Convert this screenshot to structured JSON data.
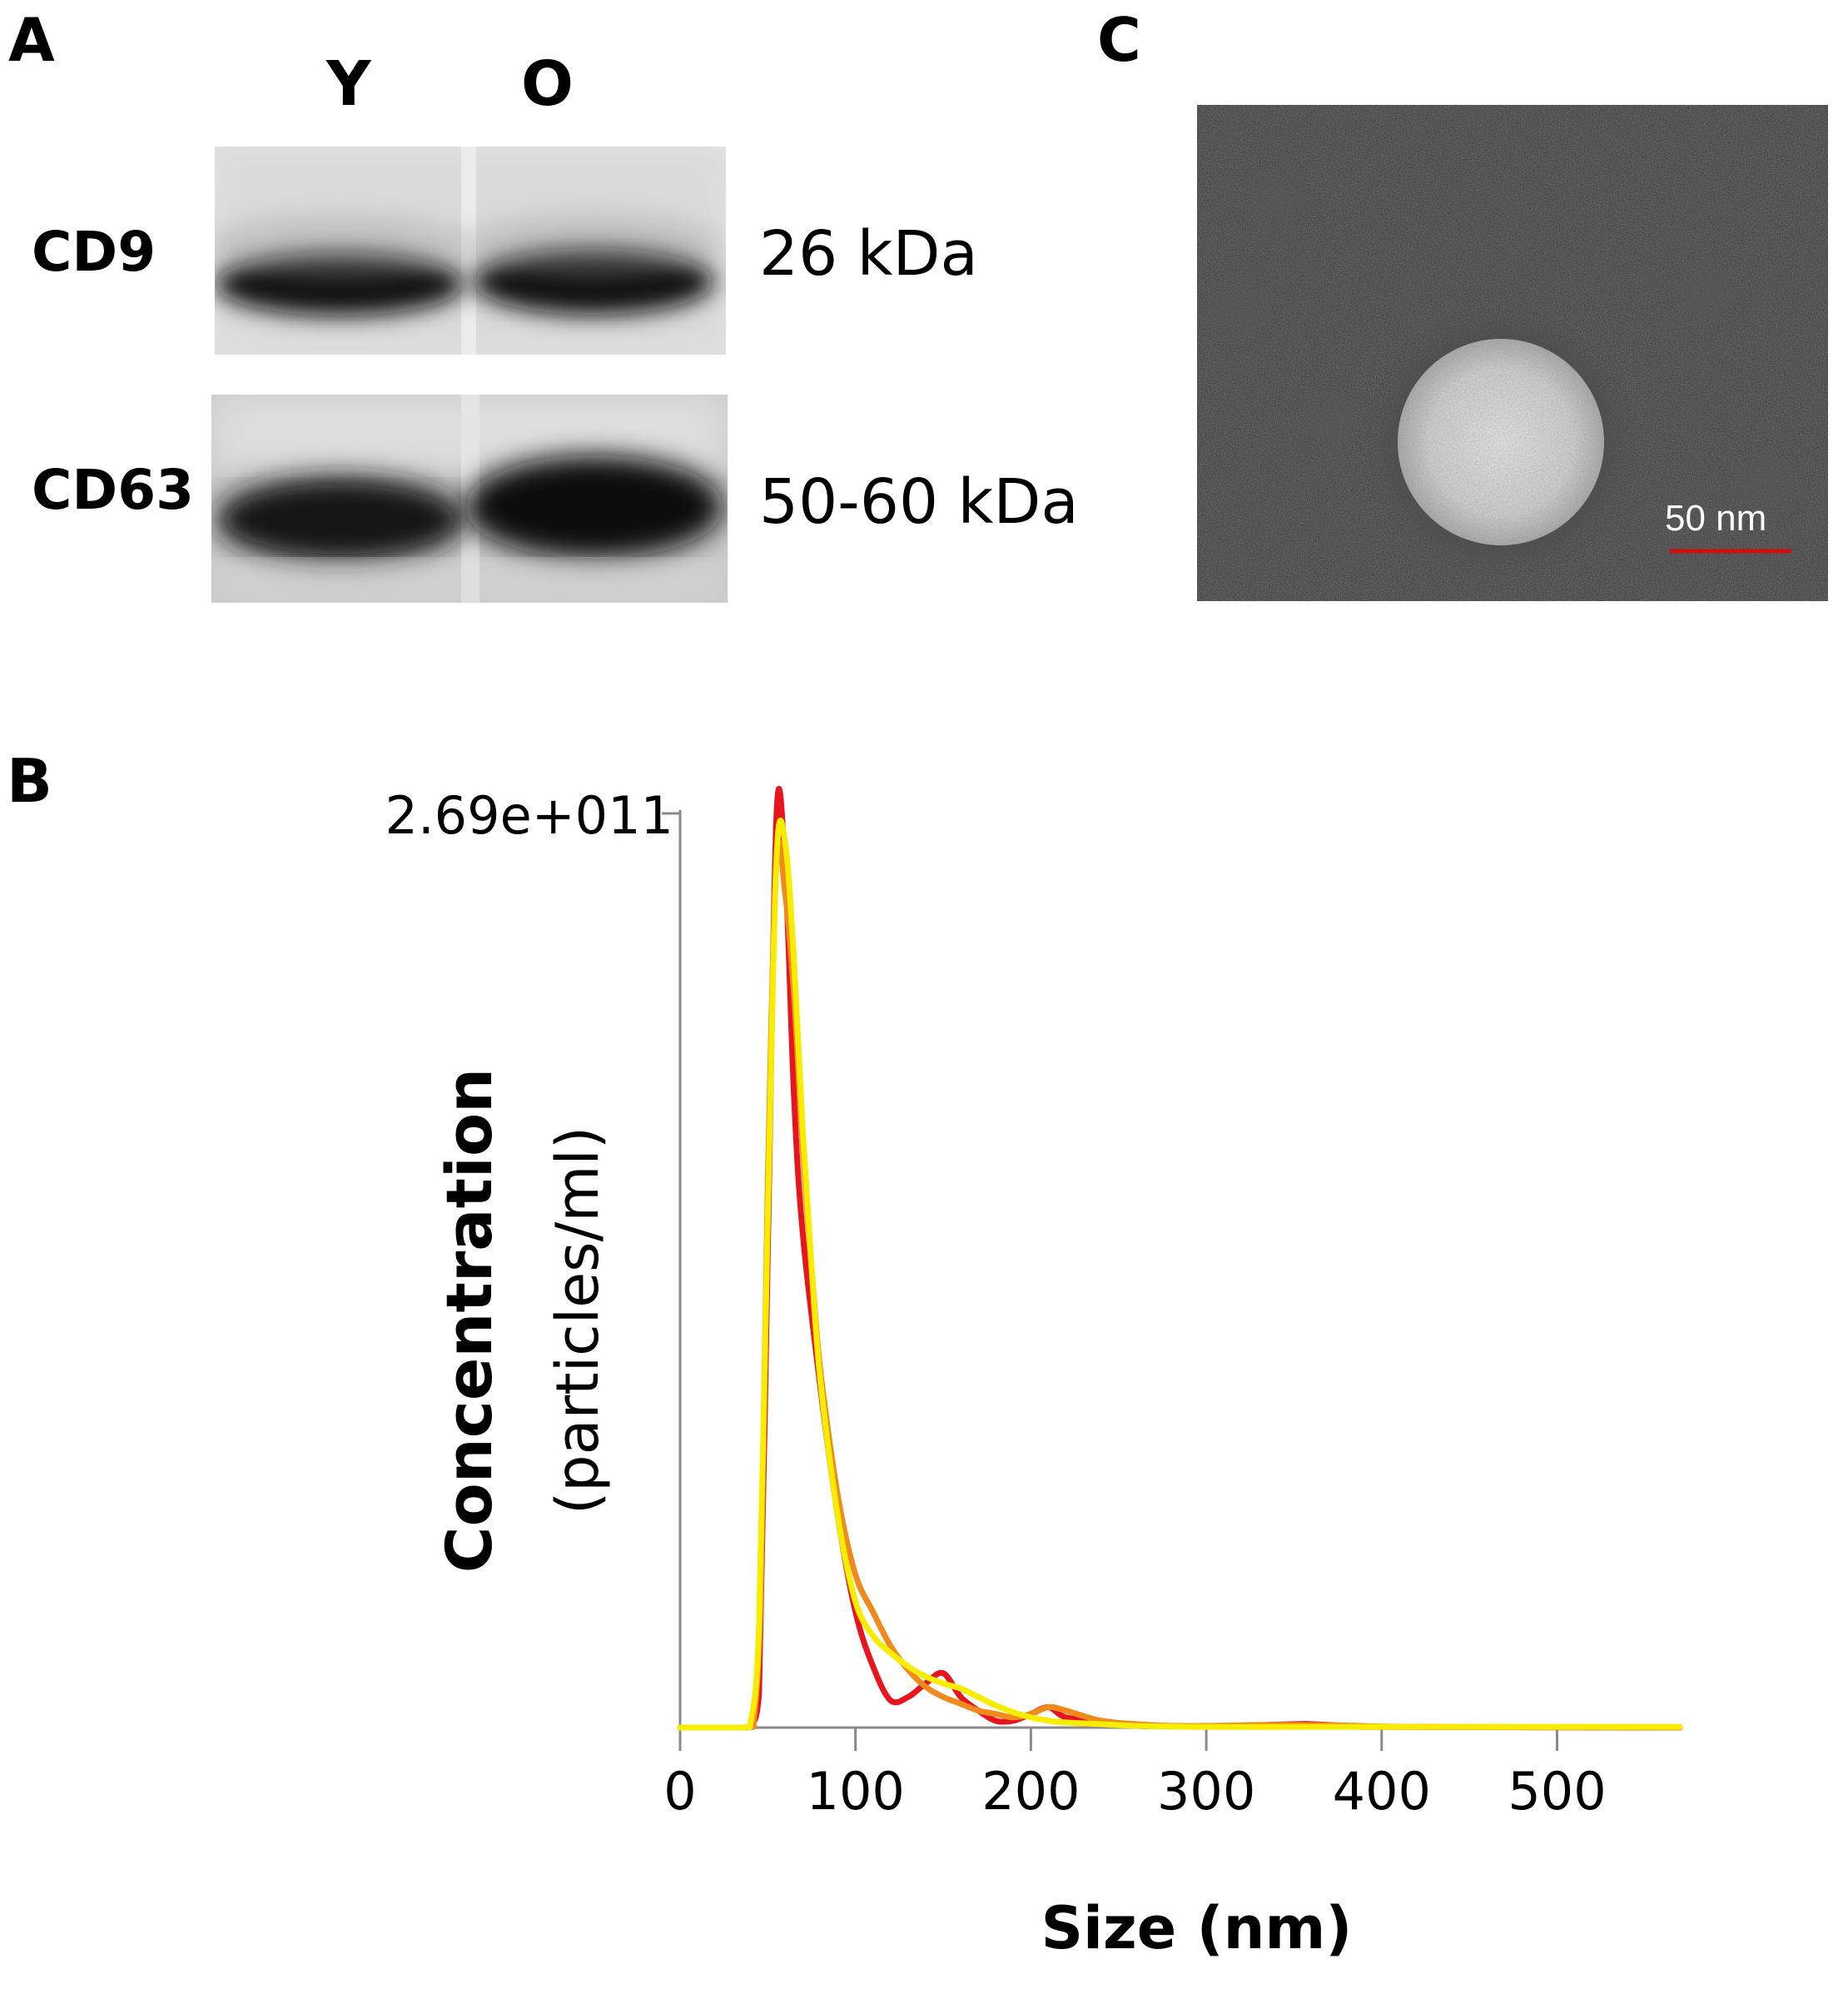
{
  "panels": {
    "a_letter": "A",
    "b_letter": "B",
    "c_letter": "C"
  },
  "western_blot": {
    "lanes": [
      "Y",
      "O"
    ],
    "rows": [
      {
        "label": "CD9",
        "mw": "26 kDa"
      },
      {
        "label": "CD63",
        "mw": "50-60 kDa"
      }
    ]
  },
  "tem": {
    "scale_bar_label": "50 nm",
    "scale_bar_color": "#d01010",
    "background_color": "#2e2e2e"
  },
  "chart_data": {
    "type": "line",
    "xlabel": "Size (nm)",
    "ylabel": "Concentration",
    "ylabel_units": "(particles/ml)",
    "y_max_label": "2.69e+011",
    "xlim": [
      0,
      570
    ],
    "ylim": [
      0,
      269000000000.0
    ],
    "x_ticks": [
      0,
      100,
      200,
      300,
      400,
      500
    ],
    "x_tick_labels": [
      "0",
      "100",
      "200",
      "300",
      "400",
      "500"
    ],
    "grid": false,
    "series": [
      {
        "color": "#e8141e",
        "x": [
          0,
          35,
          40,
          45,
          50,
          55,
          60,
          65,
          70,
          80,
          90,
          100,
          110,
          120,
          130,
          140,
          150,
          160,
          170,
          180,
          190,
          200,
          210,
          220,
          240,
          260,
          280,
          300,
          350,
          360,
          380,
          400,
          570
        ],
        "y": [
          0,
          0,
          500000000.0,
          10000000000.0,
          140000000000.0,
          269000000000.0,
          252000000000.0,
          185000000000.0,
          145000000000.0,
          100000000000.0,
          62000000000.0,
          34000000000.0,
          18000000000.0,
          8000000000.0,
          9000000000.0,
          13000000000.0,
          16000000000.0,
          9000000000.0,
          5000000000.0,
          2000000000.0,
          2000000000.0,
          4000000000.0,
          6000000000.0,
          3000000000.0,
          2000000000.0,
          500000000.0,
          500000000.0,
          300000000.0,
          1000000000.0,
          1000000000.0,
          500000000.0,
          200000000.0,
          0
        ]
      },
      {
        "color": "#f08a1c",
        "x": [
          0,
          38,
          42,
          46,
          50,
          55,
          60,
          65,
          70,
          75,
          80,
          90,
          100,
          110,
          120,
          130,
          140,
          150,
          160,
          170,
          180,
          190,
          200,
          210,
          220,
          240,
          260,
          280,
          300,
          340,
          380,
          420,
          570
        ],
        "y": [
          0,
          0,
          2000000000.0,
          40000000000.0,
          160000000000.0,
          255000000000.0,
          245000000000.0,
          215000000000.0,
          170000000000.0,
          135000000000.0,
          105000000000.0,
          68000000000.0,
          45000000000.0,
          34000000000.0,
          24000000000.0,
          17000000000.0,
          12000000000.0,
          9000000000.0,
          7000000000.0,
          5000000000.0,
          4000000000.0,
          3000000000.0,
          4000000000.0,
          6000000000.0,
          5000000000.0,
          2000000000.0,
          1000000000.0,
          500000000.0,
          500000000.0,
          800000000.0,
          600000000.0,
          200000000.0,
          0
        ]
      },
      {
        "color": "#f8ec00",
        "x": [
          0,
          36,
          40,
          45,
          50,
          55,
          60,
          65,
          70,
          75,
          80,
          90,
          100,
          110,
          120,
          130,
          140,
          150,
          160,
          170,
          180,
          190,
          200,
          210,
          220,
          240,
          260,
          280,
          300,
          350,
          400,
          450,
          570
        ],
        "y": [
          0,
          0,
          1000000000.0,
          30000000000.0,
          150000000000.0,
          256000000000.0,
          260000000000.0,
          225000000000.0,
          175000000000.0,
          135000000000.0,
          102000000000.0,
          62000000000.0,
          37000000000.0,
          27000000000.0,
          22000000000.0,
          18000000000.0,
          15000000000.0,
          13000000000.0,
          11500000000.0,
          9000000000.0,
          6500000000.0,
          4500000000.0,
          3000000000.0,
          2000000000.0,
          1500000000.0,
          1000000000.0,
          500000000.0,
          300000000.0,
          200000000.0,
          200000000.0,
          200000000.0,
          200000000.0,
          200000000.0
        ]
      }
    ]
  }
}
